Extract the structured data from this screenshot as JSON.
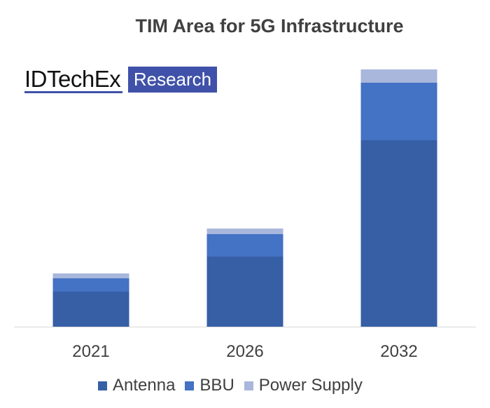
{
  "chart_data": {
    "type": "bar",
    "stacked": true,
    "title": "TIM Area for 5G Infrastructure",
    "xlabel": "",
    "ylabel": "",
    "y_axis_shown": false,
    "grid": false,
    "legend_placement": "bottom",
    "categories": [
      "2021",
      "2026",
      "2032"
    ],
    "ylim": [
      0,
      380
    ],
    "series": [
      {
        "name": "Antenna",
        "color": "#365fa6",
        "values": [
          50,
          100,
          266
        ]
      },
      {
        "name": "BBU",
        "color": "#4472c4",
        "values": [
          19,
          32,
          82
        ]
      },
      {
        "name": "Power Supply",
        "color": "#a9b7dc",
        "values": [
          7,
          8,
          19
        ]
      }
    ]
  },
  "logo": {
    "name": "IDTechEx",
    "tag": "Research",
    "color": "#3f51a8"
  }
}
